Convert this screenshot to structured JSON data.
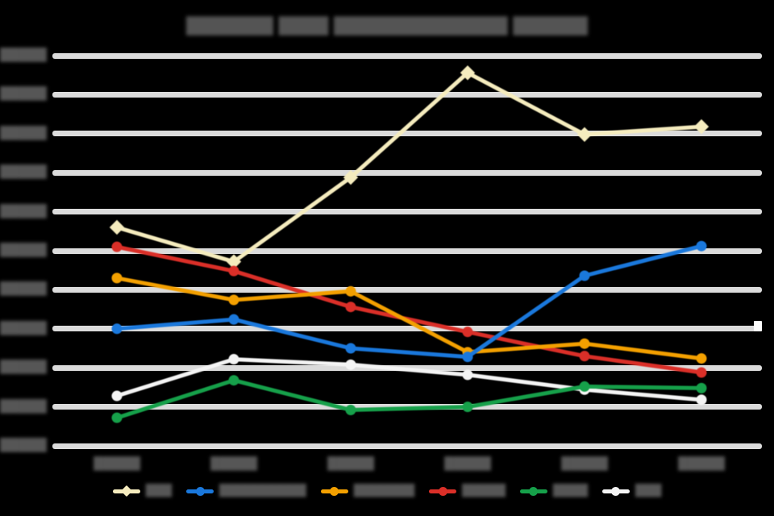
{
  "title": {
    "text": "███████ ████ ██████████████ ██████"
  },
  "colors": {
    "background": "#000000",
    "gridline": "#dbdbdb",
    "blurred_text": "#565656",
    "cream": "#f5ecbe",
    "blue": "#1a78dc",
    "orange": "#f3a000",
    "red": "#da2f28",
    "green": "#16a04a",
    "white": "#f4f4f4"
  },
  "text_illegible": true,
  "chart_data": {
    "type": "line",
    "title": "███████ ████ ██████████████ ██████",
    "categories": [
      "█████",
      "█████",
      "█████",
      "█████",
      "█████",
      "█████"
    ],
    "series": [
      {
        "name": "███",
        "color_key": "cream",
        "marker": "diamond",
        "z": 1,
        "values": [
          280,
          236,
          344,
          478,
          399,
          409
        ]
      },
      {
        "name": "██████████",
        "color_key": "blue",
        "marker": "circle",
        "z": 5,
        "values": [
          150,
          162,
          125,
          114,
          218,
          256
        ]
      },
      {
        "name": "███████",
        "color_key": "orange",
        "marker": "circle",
        "z": 4,
        "values": [
          215,
          187,
          198,
          120,
          131,
          112
        ]
      },
      {
        "name": "█████",
        "color_key": "red",
        "marker": "circle",
        "z": 3,
        "values": [
          255,
          224,
          178,
          146,
          115,
          94
        ]
      },
      {
        "name": "████",
        "color_key": "green",
        "marker": "circle",
        "z": 2,
        "values": [
          36,
          84,
          46,
          50,
          76,
          74
        ]
      },
      {
        "name": "███",
        "color_key": "white",
        "marker": "circle",
        "z": 0,
        "values": [
          64,
          111,
          104,
          91,
          72,
          59
        ]
      }
    ],
    "ylim": [
      0,
      500
    ],
    "ytick_step": 50,
    "ytick_labels": [
      "█████",
      "█████",
      "█████",
      "█████",
      "█████",
      "█████",
      "█████",
      "█████",
      "█████",
      "█████",
      "█████"
    ],
    "grid": true,
    "legend_position": "bottom"
  }
}
